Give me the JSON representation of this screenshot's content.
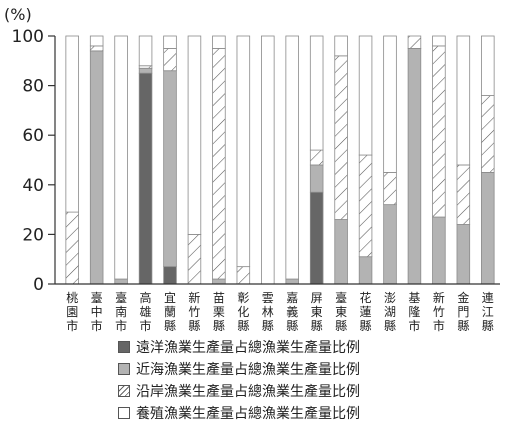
{
  "chart_data": {
    "type": "bar",
    "stacked": true,
    "percent": true,
    "unit_label": "(%)",
    "ylim": [
      0,
      100
    ],
    "yticks": [
      0,
      20,
      40,
      60,
      80,
      100
    ],
    "grid": false,
    "legend_position": "bottom",
    "categories": [
      "桃園市",
      "臺中市",
      "臺南市",
      "高雄市",
      "宜蘭縣",
      "新竹縣",
      "苗栗縣",
      "彰化縣",
      "雲林縣",
      "嘉義縣",
      "屏東縣",
      "臺東縣",
      "花蓮縣",
      "澎湖縣",
      "基隆市",
      "新竹市",
      "金門縣",
      "連江縣"
    ],
    "series": [
      {
        "name": "遠洋漁業生產量占總漁業生產量比例",
        "color": "#666666",
        "pattern": "solid",
        "values": [
          0,
          0,
          0,
          85,
          7,
          0,
          0,
          0,
          0,
          0,
          37,
          0,
          0,
          0,
          0,
          0,
          0,
          0
        ]
      },
      {
        "name": "近海漁業生產量占總漁業生產量比例",
        "color": "#b3b3b3",
        "pattern": "solid",
        "values": [
          0,
          94,
          2,
          2,
          79,
          0,
          2,
          0,
          0,
          2,
          11,
          26,
          11,
          32,
          95,
          27,
          24,
          45
        ]
      },
      {
        "name": "沿岸漁業生產量占總漁業生產量比例",
        "color": "#ffffff",
        "pattern": "hatch",
        "values": [
          29,
          2,
          0,
          1,
          9,
          20,
          93,
          7,
          0,
          0,
          6,
          66,
          41,
          13,
          5,
          69,
          24,
          31
        ]
      },
      {
        "name": "養殖漁業生產量占總漁業生產量比例",
        "color": "#ffffff",
        "pattern": "empty",
        "values": [
          71,
          4,
          98,
          12,
          5,
          80,
          5,
          93,
          100,
          98,
          46,
          8,
          48,
          55,
          0,
          4,
          52,
          24
        ]
      }
    ]
  }
}
